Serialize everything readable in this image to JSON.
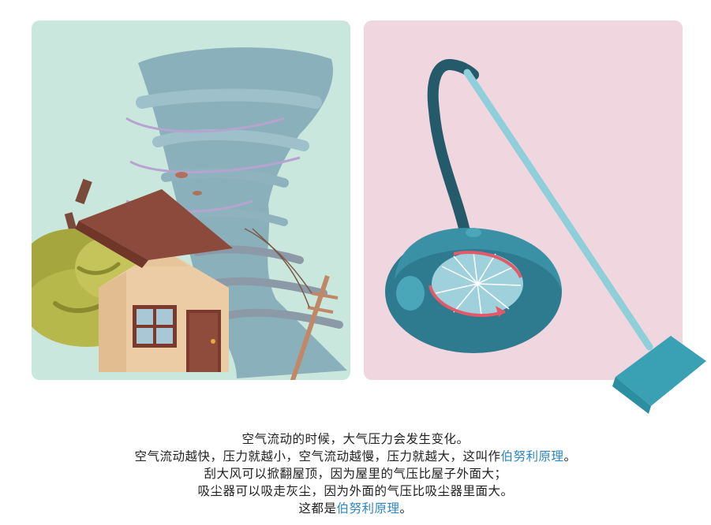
{
  "caption": {
    "line1": "空气流动的时候，大气压力会发生变化。",
    "line2_pre": "空气流动越快，压力就越小，空气流动越慢，压力就越大，这叫作",
    "line2_term": "伯努利原理",
    "line2_post": "。",
    "line3": "刮大风可以掀翻屋顶，因为屋里的气压比屋子外面大；",
    "line4": "吸尘器可以吸走灰尘，因为外面的气压比吸尘器里面大。",
    "line5_pre": "这都是",
    "line5_term": "伯努利原理",
    "line5_post": "。"
  },
  "colors": {
    "left_panel_bg": "#c9e7dd",
    "right_panel_bg": "#f0d6df",
    "highlight": "#2e86c1"
  }
}
